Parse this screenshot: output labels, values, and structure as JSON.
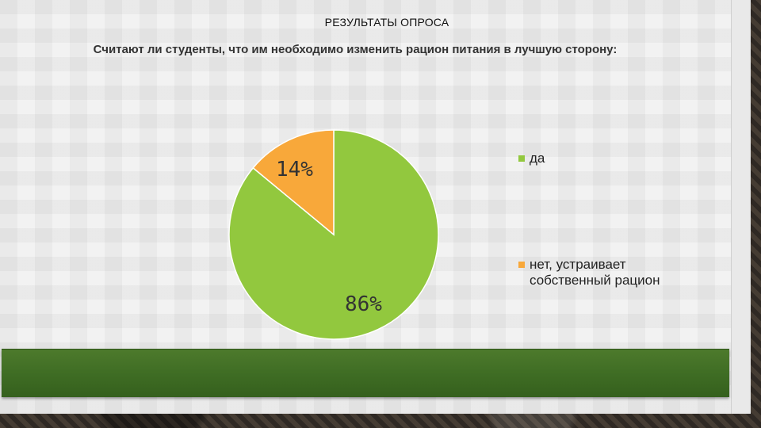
{
  "slide": {
    "header_title": "РЕЗУЛЬТАТЫ ОПРОСА",
    "question": "Считают ли студенты, что им необходимо изменить рацион питания в лучшую сторону:"
  },
  "chart_data": {
    "type": "pie",
    "title": "Считают ли студенты, что им необходимо изменить рацион питания в лучшую сторону:",
    "categories": [
      "да",
      "нет, устраивает собственный рацион"
    ],
    "values": [
      86,
      14
    ],
    "labels": [
      "86%",
      "14%"
    ],
    "colors": [
      "#92c83e",
      "#f8a83a"
    ],
    "legend": "right"
  }
}
